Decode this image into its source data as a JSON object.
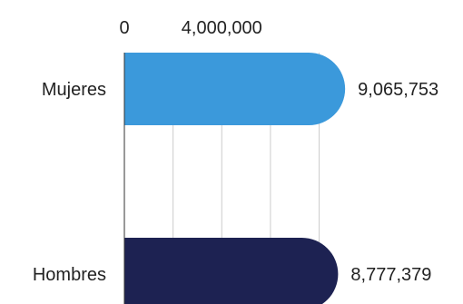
{
  "chart_data": {
    "type": "bar",
    "orientation": "horizontal",
    "categories": [
      "Mujeres",
      "Hombres"
    ],
    "values": [
      9065753,
      8777379
    ],
    "value_labels": [
      "9,065,753",
      "8,777,379"
    ],
    "xticks": [
      0,
      4000000
    ],
    "xtick_labels": [
      "0",
      "4,000,000"
    ],
    "grid_values": [
      2000000,
      4000000,
      6000000,
      8000000
    ],
    "xlim": [
      0,
      10000000
    ],
    "grid": true,
    "bar_colors": [
      "#3b99db",
      "#1d2252"
    ],
    "gridline_color": "#cccccc",
    "axis_color": "#333333"
  }
}
